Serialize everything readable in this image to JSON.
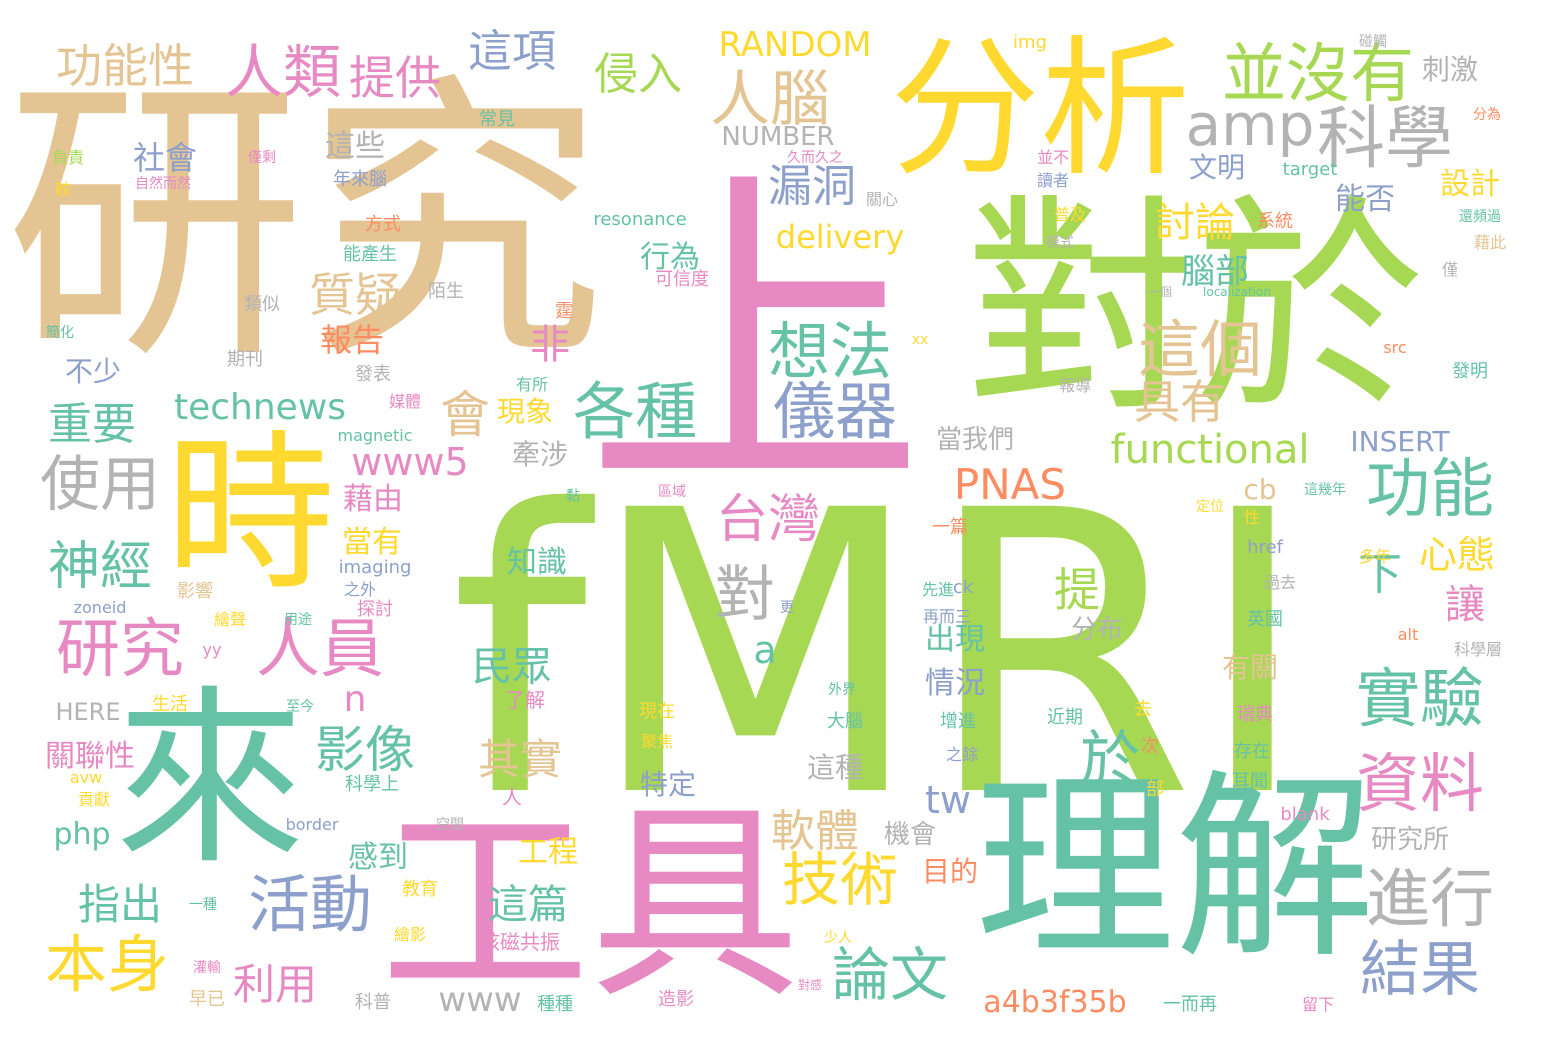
{
  "palette": {
    "green": "#a6d854",
    "tan": "#e5c494",
    "yellow": "#ffd92f",
    "teal": "#66c2a5",
    "pink": "#e78ac3",
    "blue": "#8da0cb",
    "orange": "#fc8d62",
    "gray": "#b3b3b3"
  },
  "words": [
    {
      "text": "fMRI",
      "color": "green"
    },
    {
      "text": "研究",
      "color": "tan"
    },
    {
      "text": "上",
      "color": "pink"
    },
    {
      "text": "對於",
      "color": "green"
    },
    {
      "text": "分析",
      "color": "yellow"
    },
    {
      "text": "工具",
      "color": "pink"
    },
    {
      "text": "理解",
      "color": "teal"
    },
    {
      "text": "時",
      "color": "yellow"
    },
    {
      "text": "來",
      "color": "teal"
    },
    {
      "text": "並沒有",
      "color": "green"
    },
    {
      "text": "amp",
      "color": "gray"
    },
    {
      "text": "科學",
      "color": "gray"
    },
    {
      "text": "人類",
      "color": "pink"
    },
    {
      "text": "人腦",
      "color": "tan"
    },
    {
      "text": "想法",
      "color": "teal"
    },
    {
      "text": "儀器",
      "color": "blue"
    },
    {
      "text": "各種",
      "color": "teal"
    },
    {
      "text": "這個",
      "color": "tan"
    },
    {
      "text": "研究",
      "color": "pink"
    },
    {
      "text": "人員",
      "color": "pink"
    },
    {
      "text": "使用",
      "color": "gray"
    },
    {
      "text": "功能",
      "color": "teal"
    },
    {
      "text": "實驗",
      "color": "teal"
    },
    {
      "text": "資料",
      "color": "pink"
    },
    {
      "text": "進行",
      "color": "gray"
    },
    {
      "text": "結果",
      "color": "blue"
    },
    {
      "text": "活動",
      "color": "blue"
    },
    {
      "text": "本身",
      "color": "yellow"
    },
    {
      "text": "技術",
      "color": "yellow"
    },
    {
      "text": "論文",
      "color": "teal"
    },
    {
      "text": "對",
      "color": "gray"
    },
    {
      "text": "於",
      "color": "teal"
    },
    {
      "text": "台灣",
      "color": "pink"
    },
    {
      "text": "影像",
      "color": "teal"
    },
    {
      "text": "神經",
      "color": "teal"
    },
    {
      "text": "功能性",
      "color": "tan"
    },
    {
      "text": "提供",
      "color": "pink"
    },
    {
      "text": "這項",
      "color": "blue"
    },
    {
      "text": "侵入",
      "color": "green"
    },
    {
      "text": "RANDOM",
      "color": "yellow"
    },
    {
      "text": "漏洞",
      "color": "blue"
    },
    {
      "text": "質疑",
      "color": "tan"
    },
    {
      "text": "technews",
      "color": "teal"
    },
    {
      "text": "functional",
      "color": "green"
    },
    {
      "text": "PNAS",
      "color": "orange"
    },
    {
      "text": "www5",
      "color": "pink"
    },
    {
      "text": "會",
      "color": "tan"
    },
    {
      "text": "重要",
      "color": "teal"
    },
    {
      "text": "具有",
      "color": "tan"
    },
    {
      "text": "delivery",
      "color": "yellow"
    },
    {
      "text": "討論",
      "color": "yellow"
    },
    {
      "text": "提出",
      "color": "green"
    },
    {
      "text": "心態",
      "color": "yellow"
    },
    {
      "text": "下",
      "color": "teal"
    },
    {
      "text": "讓",
      "color": "pink"
    },
    {
      "text": "民眾",
      "color": "teal"
    },
    {
      "text": "其實",
      "color": "tan"
    },
    {
      "text": "軟體",
      "color": "tan"
    },
    {
      "text": "指出",
      "color": "teal"
    },
    {
      "text": "利用",
      "color": "pink"
    },
    {
      "text": "這篇",
      "color": "teal"
    },
    {
      "text": "www",
      "color": "gray"
    },
    {
      "text": "a4b3f35b",
      "color": "orange"
    },
    {
      "text": "tw",
      "color": "blue"
    },
    {
      "text": "腦部",
      "color": "teal"
    },
    {
      "text": "社會",
      "color": "blue"
    },
    {
      "text": "這些",
      "color": "gray"
    },
    {
      "text": "非",
      "color": "pink"
    },
    {
      "text": "報告",
      "color": "orange"
    },
    {
      "text": "NUMBER",
      "color": "gray"
    },
    {
      "text": "INSERT",
      "color": "blue"
    },
    {
      "text": "a",
      "color": "teal"
    },
    {
      "text": "n",
      "color": "pink"
    },
    {
      "text": "cb",
      "color": "tan"
    },
    {
      "text": "php",
      "color": "teal"
    },
    {
      "text": "藉由",
      "color": "pink"
    },
    {
      "text": "當有",
      "color": "yellow"
    },
    {
      "text": "知識",
      "color": "teal"
    },
    {
      "text": "分布",
      "color": "gray"
    },
    {
      "text": "出現",
      "color": "teal"
    },
    {
      "text": "情況",
      "color": "blue"
    },
    {
      "text": "文明",
      "color": "blue"
    },
    {
      "text": "設計",
      "color": "yellow"
    },
    {
      "text": "刺激",
      "color": "gray"
    },
    {
      "text": "能否",
      "color": "blue"
    },
    {
      "text": "行為",
      "color": "teal"
    },
    {
      "text": "不少",
      "color": "blue"
    },
    {
      "text": "關聯性",
      "color": "pink"
    },
    {
      "text": "HERE",
      "color": "gray"
    },
    {
      "text": "感到",
      "color": "teal"
    },
    {
      "text": "工程",
      "color": "yellow"
    },
    {
      "text": "目的",
      "color": "orange"
    },
    {
      "text": "機會",
      "color": "gray"
    },
    {
      "text": "特定",
      "color": "blue"
    },
    {
      "text": "這種",
      "color": "gray"
    },
    {
      "text": "研究所",
      "color": "gray"
    },
    {
      "text": "當我們",
      "color": "gray"
    },
    {
      "text": "牽涉",
      "color": "gray"
    },
    {
      "text": "現象",
      "color": "yellow"
    },
    {
      "text": "有關",
      "color": "tan"
    },
    {
      "text": "resonance",
      "color": "teal"
    },
    {
      "text": "magnetic",
      "color": "teal"
    },
    {
      "text": "imaging",
      "color": "blue"
    },
    {
      "text": "img",
      "color": "yellow"
    },
    {
      "text": "target",
      "color": "teal"
    },
    {
      "text": "localization",
      "color": "teal"
    },
    {
      "text": "href",
      "color": "blue"
    },
    {
      "text": "zoneid",
      "color": "blue"
    },
    {
      "text": "border",
      "color": "blue"
    },
    {
      "text": "blank",
      "color": "pink"
    },
    {
      "text": "alt",
      "color": "orange"
    },
    {
      "text": "src",
      "color": "orange"
    },
    {
      "text": "yy",
      "color": "pink"
    },
    {
      "text": "avw",
      "color": "yellow"
    },
    {
      "text": "ck",
      "color": "blue"
    },
    {
      "text": "xx",
      "color": "yellow"
    },
    {
      "text": "常見",
      "color": "teal"
    },
    {
      "text": "年來腦",
      "color": "blue"
    },
    {
      "text": "負責",
      "color": "green"
    },
    {
      "text": "較",
      "color": "yellow"
    },
    {
      "text": "自然而然",
      "color": "pink"
    },
    {
      "text": "僅剩",
      "color": "pink"
    },
    {
      "text": "方式",
      "color": "orange"
    },
    {
      "text": "能產生",
      "color": "teal"
    },
    {
      "text": "類似",
      "color": "gray"
    },
    {
      "text": "陌生",
      "color": "gray"
    },
    {
      "text": "期刊",
      "color": "gray"
    },
    {
      "text": "發表",
      "color": "gray"
    },
    {
      "text": "媒體",
      "color": "pink"
    },
    {
      "text": "有所",
      "color": "teal"
    },
    {
      "text": "簡化",
      "color": "teal"
    },
    {
      "text": "碰觸",
      "color": "gray"
    },
    {
      "text": "分為",
      "color": "orange"
    },
    {
      "text": "久而久之",
      "color": "pink"
    },
    {
      "text": "關心",
      "color": "gray"
    },
    {
      "text": "並不",
      "color": "pink"
    },
    {
      "text": "讀者",
      "color": "blue"
    },
    {
      "text": "普及",
      "color": "yellow"
    },
    {
      "text": "模式",
      "color": "gray"
    },
    {
      "text": "系統",
      "color": "orange"
    },
    {
      "text": "還頻過",
      "color": "teal"
    },
    {
      "text": "藉此",
      "color": "tan"
    },
    {
      "text": "可信度",
      "color": "pink"
    },
    {
      "text": "一個",
      "color": "gray"
    },
    {
      "text": "報導",
      "color": "gray"
    },
    {
      "text": "發明",
      "color": "teal"
    },
    {
      "text": "這幾年",
      "color": "teal"
    },
    {
      "text": "性",
      "color": "yellow"
    },
    {
      "text": "定位",
      "color": "yellow"
    },
    {
      "text": "一篇",
      "color": "orange"
    },
    {
      "text": "先進",
      "color": "teal"
    },
    {
      "text": "再而三",
      "color": "blue"
    },
    {
      "text": "更",
      "color": "blue"
    },
    {
      "text": "用途",
      "color": "teal"
    },
    {
      "text": "之外",
      "color": "blue"
    },
    {
      "text": "影響",
      "color": "tan"
    },
    {
      "text": "繪聲",
      "color": "yellow"
    },
    {
      "text": "探討",
      "color": "pink"
    },
    {
      "text": "了解",
      "color": "pink"
    },
    {
      "text": "人",
      "color": "pink"
    },
    {
      "text": "至今",
      "color": "teal"
    },
    {
      "text": "生活",
      "color": "yellow"
    },
    {
      "text": "外界",
      "color": "teal"
    },
    {
      "text": "大腦",
      "color": "teal"
    },
    {
      "text": "增進",
      "color": "teal"
    },
    {
      "text": "之餘",
      "color": "blue"
    },
    {
      "text": "近期",
      "color": "teal"
    },
    {
      "text": "去",
      "color": "yellow"
    },
    {
      "text": "瑞典",
      "color": "pink"
    },
    {
      "text": "多年",
      "color": "yellow"
    },
    {
      "text": "過去",
      "color": "gray"
    },
    {
      "text": "英國",
      "color": "teal"
    },
    {
      "text": "科學層",
      "color": "gray"
    },
    {
      "text": "存在",
      "color": "teal"
    },
    {
      "text": "耳聞",
      "color": "teal"
    },
    {
      "text": "現在",
      "color": "yellow"
    },
    {
      "text": "聚焦",
      "color": "yellow"
    },
    {
      "text": "空間",
      "color": "gray"
    },
    {
      "text": "部",
      "color": "yellow"
    },
    {
      "text": "次",
      "color": "orange"
    },
    {
      "text": "科學上",
      "color": "teal"
    },
    {
      "text": "貢獻",
      "color": "yellow"
    },
    {
      "text": "教育",
      "color": "yellow"
    },
    {
      "text": "一種",
      "color": "teal"
    },
    {
      "text": "繪影",
      "color": "yellow"
    },
    {
      "text": "核磁共振",
      "color": "pink"
    },
    {
      "text": "灌輸",
      "color": "pink"
    },
    {
      "text": "早已",
      "color": "tan"
    },
    {
      "text": "科普",
      "color": "gray"
    },
    {
      "text": "種種",
      "color": "teal"
    },
    {
      "text": "造影",
      "color": "pink"
    },
    {
      "text": "對感",
      "color": "pink"
    },
    {
      "text": "一而再",
      "color": "teal"
    },
    {
      "text": "少人",
      "color": "yellow"
    },
    {
      "text": "留下",
      "color": "pink"
    },
    {
      "text": "區域",
      "color": "pink"
    },
    {
      "text": "黏",
      "color": "teal"
    },
    {
      "text": "霆",
      "color": "orange"
    },
    {
      "text": "僅",
      "color": "gray"
    }
  ]
}
